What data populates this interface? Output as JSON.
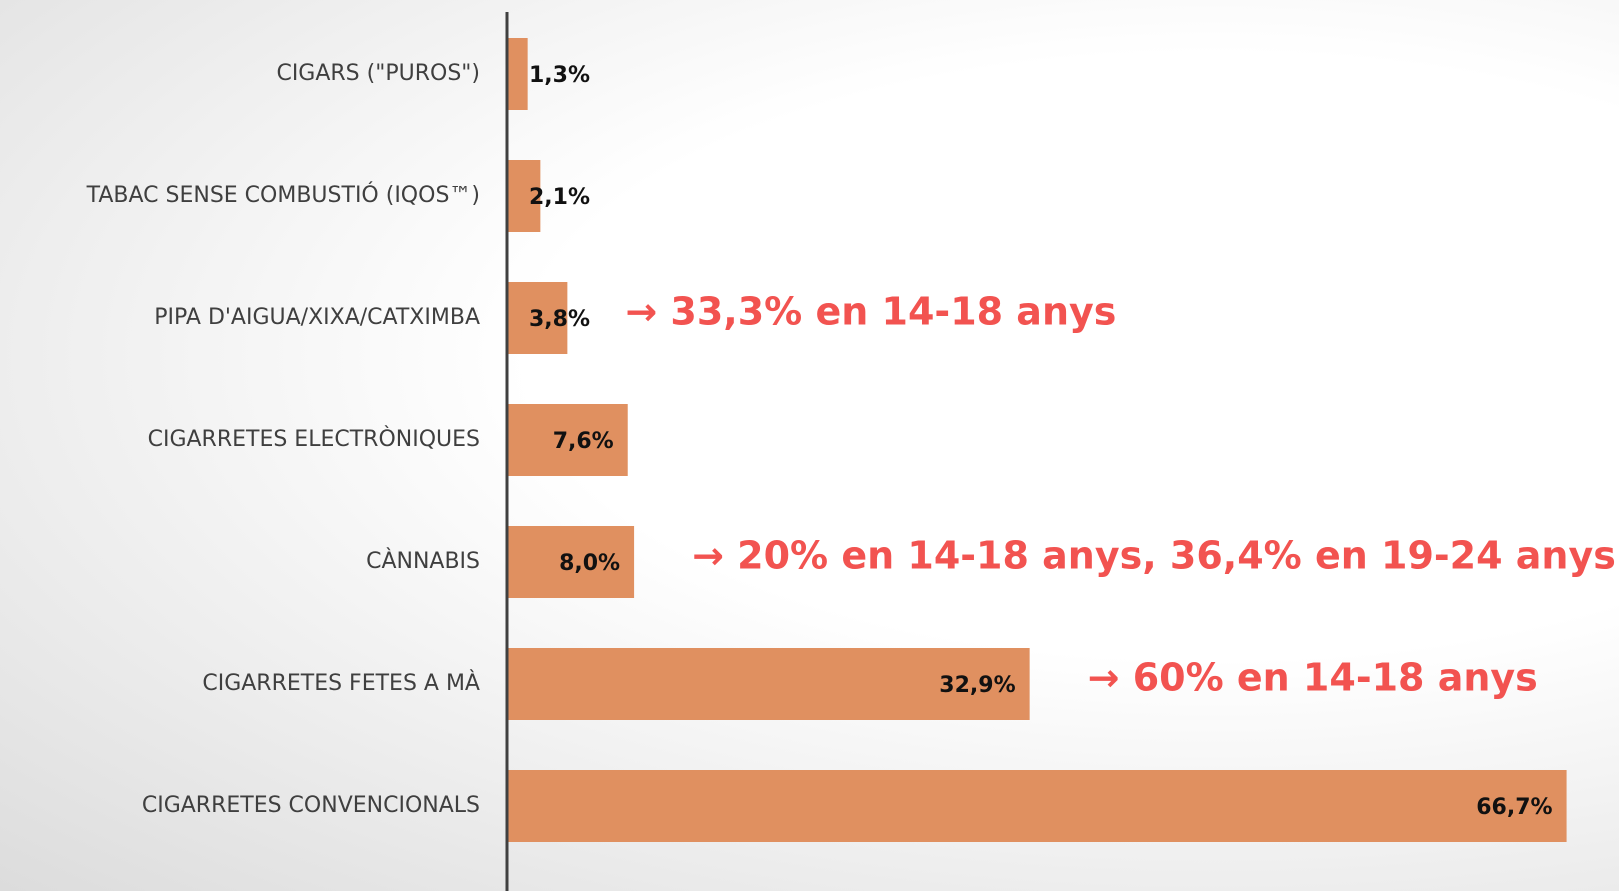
{
  "chart_data": {
    "type": "bar",
    "orientation": "horizontal",
    "categories": [
      "CIGARS (\"PUROS\")",
      "TABAC SENSE COMBUSTIÓ (IQOS™)",
      "PIPA D'AIGUA/XIXA/CATXIMBA",
      "CIGARRETES ELECTRÒNIQUES",
      "CÀNNABIS",
      "CIGARRETES FETES A MÀ",
      "CIGARRETES CONVENCIONALS"
    ],
    "values": [
      1.3,
      2.1,
      3.8,
      7.6,
      8.0,
      32.9,
      66.7
    ],
    "value_labels": [
      "1,3%",
      "2,1%",
      "3,8%",
      "7,6%",
      "8,0%",
      "32,9%",
      "66,7%"
    ],
    "annotations": [
      null,
      null,
      "→ 33,3% en 14-18 anys",
      null,
      "→ 20% en 14-18 anys, 36,4% en 19-24 anys",
      "→ 60% en 14-18 anys",
      null
    ],
    "color": "#e09060",
    "annotation_color": "#f25350",
    "xlim": [
      0,
      70
    ]
  }
}
